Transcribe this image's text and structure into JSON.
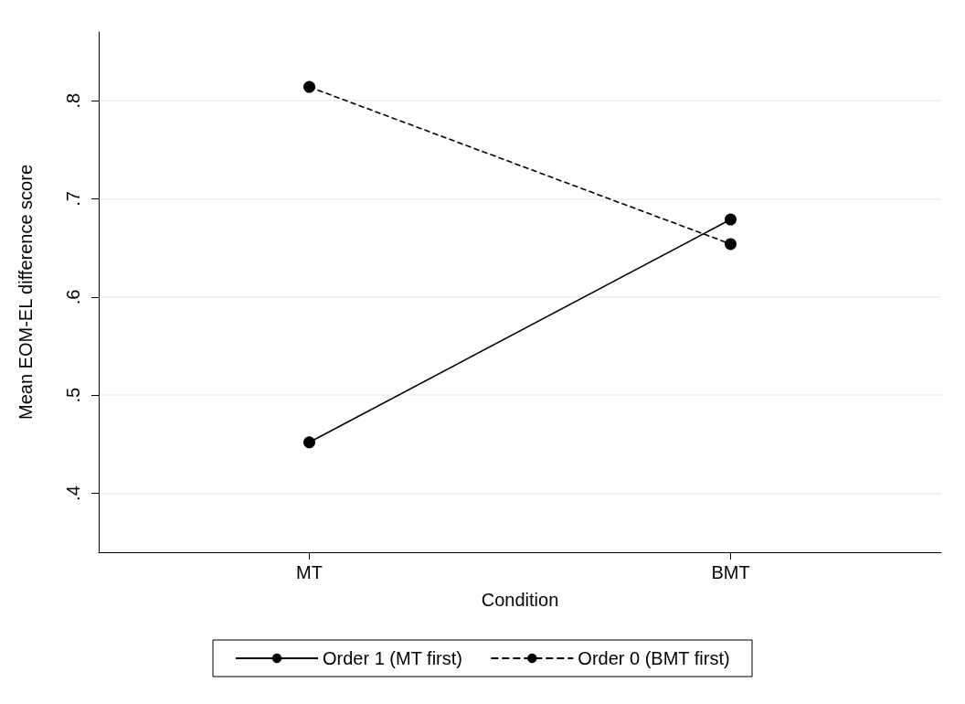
{
  "chart_data": {
    "type": "line",
    "xlabel": "Condition",
    "ylabel": "Mean EOM-EL difference score",
    "categories": [
      "MT",
      "BMT"
    ],
    "series": [
      {
        "name": "Order 1 (MT first)",
        "color": "#000000",
        "values": [
          0.452,
          0.679
        ],
        "line_style": "solid"
      },
      {
        "name": "Order 0 (BMT first)",
        "color": "#000000",
        "values": [
          0.814,
          0.654
        ],
        "line_style": "dashed"
      }
    ],
    "ylim": [
      0.34,
      0.87
    ],
    "yticks": [
      {
        "value": 0.4,
        "label": ".4"
      },
      {
        "value": 0.5,
        "label": ".5"
      },
      {
        "value": 0.6,
        "label": ".6"
      },
      {
        "value": 0.7,
        "label": ".7"
      },
      {
        "value": 0.8,
        "label": ".8"
      }
    ],
    "grid": "y",
    "legend": "bottom",
    "marker": "circle"
  }
}
